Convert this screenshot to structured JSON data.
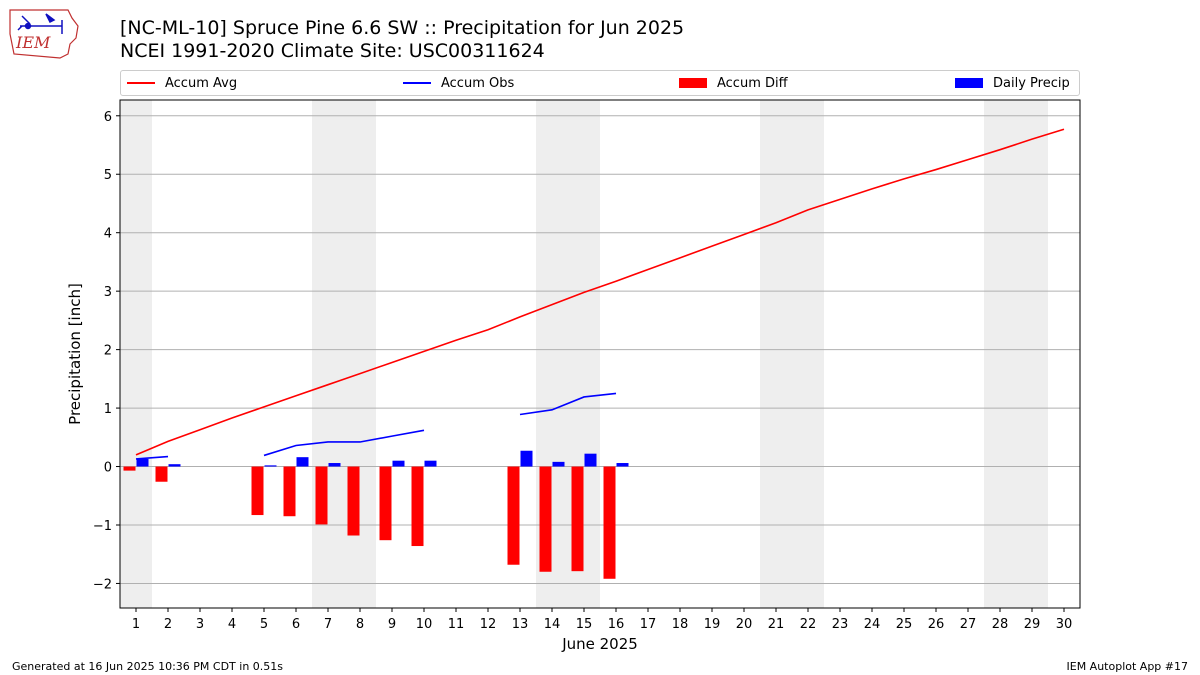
{
  "header": {
    "title_line1": "[NC-ML-10] Spruce Pine 6.6 SW :: Precipitation for Jun 2025",
    "title_line2": "NCEI 1991-2020 Climate Site: USC00311624"
  },
  "logo": {
    "text": "IEM"
  },
  "legend": {
    "items": [
      {
        "label": "Accum Avg",
        "kind": "line",
        "color": "#ff0000"
      },
      {
        "label": "Accum Obs",
        "kind": "line",
        "color": "#0000ff"
      },
      {
        "label": "Accum Diff",
        "kind": "bar",
        "color": "#ff0000"
      },
      {
        "label": "Daily Precip",
        "kind": "bar",
        "color": "#0000ff"
      }
    ]
  },
  "footer": {
    "left": "Generated at 16 Jun 2025 10:36 PM CDT in 0.51s",
    "right": "IEM Autoplot App #17"
  },
  "chart_data": {
    "type": "bar",
    "xlabel": "June 2025",
    "ylabel": "Precipitation [inch]",
    "xlim": [
      0.5,
      30.5
    ],
    "ylim": [
      -2.42,
      6.27
    ],
    "yticks": [
      -2,
      -1,
      0,
      1,
      2,
      3,
      4,
      5,
      6
    ],
    "ytick_labels": [
      "−2",
      "−1",
      "0",
      "1",
      "2",
      "3",
      "4",
      "5",
      "6"
    ],
    "days": [
      1,
      2,
      3,
      4,
      5,
      6,
      7,
      8,
      9,
      10,
      11,
      12,
      13,
      14,
      15,
      16,
      17,
      18,
      19,
      20,
      21,
      22,
      23,
      24,
      25,
      26,
      27,
      28,
      29,
      30
    ],
    "grid": "horizontal",
    "weekend_shading": [
      [
        0.5,
        1.5
      ],
      [
        6.5,
        8.5
      ],
      [
        13.5,
        15.5
      ],
      [
        20.5,
        22.5
      ],
      [
        27.5,
        29.5
      ]
    ],
    "series": [
      {
        "name": "Accum Avg",
        "type": "line",
        "color": "#ff0000",
        "x": [
          1,
          2,
          3,
          4,
          5,
          6,
          7,
          8,
          9,
          10,
          11,
          12,
          13,
          14,
          15,
          16,
          17,
          18,
          19,
          20,
          21,
          22,
          23,
          24,
          25,
          26,
          27,
          28,
          29,
          30
        ],
        "y": [
          0.2,
          0.43,
          0.63,
          0.83,
          1.02,
          1.21,
          1.4,
          1.59,
          1.78,
          1.97,
          2.16,
          2.34,
          2.56,
          2.77,
          2.98,
          3.17,
          3.37,
          3.57,
          3.77,
          3.97,
          4.17,
          4.39,
          4.57,
          4.75,
          4.92,
          5.08,
          5.25,
          5.42,
          5.6,
          5.77
        ]
      },
      {
        "name": "Accum Obs",
        "type": "line",
        "color": "#0000ff",
        "segments": [
          {
            "x": [
              1,
              2
            ],
            "y": [
              0.13,
              0.17
            ]
          },
          {
            "x": [
              5,
              6,
              7,
              8,
              9,
              10
            ],
            "y": [
              0.19,
              0.36,
              0.42,
              0.42,
              0.52,
              0.62
            ]
          },
          {
            "x": [
              13,
              14,
              15,
              16
            ],
            "y": [
              0.89,
              0.97,
              1.19,
              1.25
            ]
          }
        ]
      },
      {
        "name": "Accum Diff",
        "type": "bar",
        "color": "#ff0000",
        "x": [
          1,
          2,
          5,
          6,
          7,
          8,
          9,
          10,
          13,
          14,
          15,
          16
        ],
        "y": [
          -0.07,
          -0.26,
          -0.83,
          -0.85,
          -0.99,
          -1.18,
          -1.26,
          -1.36,
          -1.68,
          -1.8,
          -1.79,
          -1.92
        ]
      },
      {
        "name": "Daily Precip",
        "type": "bar",
        "color": "#0000ff",
        "x": [
          1,
          2,
          5,
          6,
          7,
          9,
          10,
          13,
          14,
          15,
          16
        ],
        "y": [
          0.13,
          0.04,
          0.02,
          0.16,
          0.06,
          0.1,
          0.1,
          0.27,
          0.08,
          0.22,
          0.06
        ]
      }
    ]
  }
}
